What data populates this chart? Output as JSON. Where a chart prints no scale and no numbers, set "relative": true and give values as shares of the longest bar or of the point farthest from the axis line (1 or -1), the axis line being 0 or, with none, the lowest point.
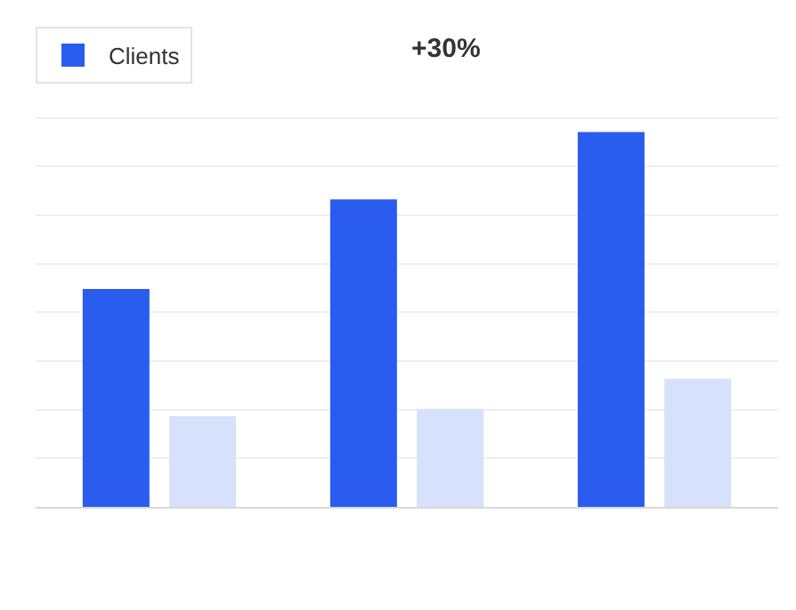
{
  "chart_data": {
    "type": "bar",
    "relative": true,
    "categories": [
      null,
      null,
      null
    ],
    "series": [
      {
        "name": "Clients",
        "color": "#2a5cf0",
        "values": [
          0.58,
          0.82,
          1
        ]
      },
      {
        "color": "#d6e1fb",
        "values": [
          0.24,
          0.26,
          0.34
        ]
      }
    ],
    "annotations": [
      "+30%"
    ],
    "grid": "y",
    "legend": "top left"
  }
}
